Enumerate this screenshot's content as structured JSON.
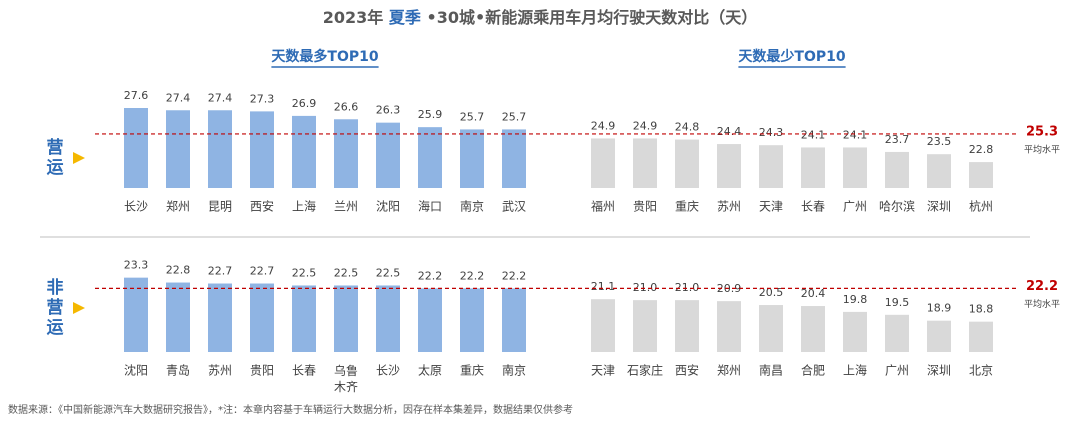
{
  "title": {
    "year": "2023年",
    "season": "夏季",
    "rest": "•30城•新能源乘用车月均行驶天数对比（天）"
  },
  "rows": [
    {
      "label": "营运",
      "average": 25.3,
      "average_label": "平均水平"
    },
    {
      "label": "非营运",
      "average": 22.2,
      "average_label": "平均水平"
    }
  ],
  "source": "数据来源：《中国新能源汽车大数据研究报告》，*注：本章内容基于车辆运行大数据分析，因存在样本集差异，数据结果仅供参考",
  "chart_data": [
    {
      "type": "bar",
      "title": "天数最多TOP10",
      "color": "#8fb4e3",
      "ylim": [
        20.5,
        28
      ],
      "categories": [
        "长沙",
        "郑州",
        "昆明",
        "西安",
        "上海",
        "兰州",
        "沈阳",
        "海口",
        "南京",
        "武汉"
      ],
      "values": [
        27.6,
        27.4,
        27.4,
        27.3,
        26.9,
        26.6,
        26.3,
        25.9,
        25.7,
        25.7
      ]
    },
    {
      "type": "bar",
      "title": "天数最少TOP10",
      "color": "#d9d9d9",
      "ylim": [
        20.5,
        28
      ],
      "categories": [
        "福州",
        "贵阳",
        "重庆",
        "苏州",
        "天津",
        "长春",
        "广州",
        "哈尔滨",
        "深圳",
        "杭州"
      ],
      "values": [
        24.9,
        24.9,
        24.8,
        24.4,
        24.3,
        24.1,
        24.1,
        23.7,
        23.5,
        22.8
      ]
    },
    {
      "type": "bar",
      "color": "#8fb4e3",
      "ylim": [
        15.7,
        24
      ],
      "categories": [
        "沈阳",
        "青岛",
        "苏州",
        "贵阳",
        "长春",
        "乌鲁木齐",
        "长沙",
        "太原",
        "重庆",
        "南京"
      ],
      "values": [
        23.3,
        22.8,
        22.7,
        22.7,
        22.5,
        22.5,
        22.5,
        22.2,
        22.2,
        22.2
      ]
    },
    {
      "type": "bar",
      "color": "#d9d9d9",
      "ylim": [
        15.7,
        24
      ],
      "categories": [
        "天津",
        "石家庄",
        "西安",
        "郑州",
        "南昌",
        "合肥",
        "上海",
        "广州",
        "深圳",
        "北京"
      ],
      "values": [
        21.1,
        21.0,
        21.0,
        20.9,
        20.5,
        20.4,
        19.8,
        19.5,
        18.9,
        18.8
      ],
      "value_labels": [
        "21.1",
        "21.0",
        "21.0",
        "20.9",
        "20.5",
        "20.4",
        "19.8",
        "19.5",
        "18.9",
        "18.8"
      ]
    }
  ]
}
